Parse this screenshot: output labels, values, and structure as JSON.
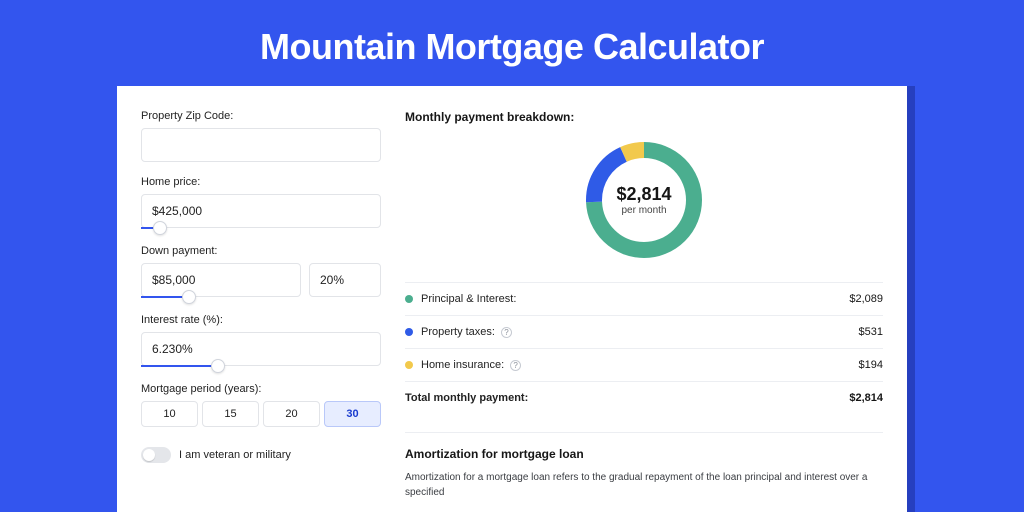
{
  "colors": {
    "page_bg": "#3355ee",
    "panel_bg": "#ffffff",
    "text_primary": "#161616",
    "input_border": "#e2e4e8",
    "slider_fill": "#3355ee",
    "period_active_bg": "#e7edff",
    "divider": "#eceef2"
  },
  "header": {
    "title": "Mountain Mortgage Calculator"
  },
  "form": {
    "zip": {
      "label": "Property Zip Code:",
      "value": ""
    },
    "home_price": {
      "label": "Home price:",
      "value": "$425,000",
      "slider_pct": 8
    },
    "down_payment": {
      "label": "Down payment:",
      "amount": "$85,000",
      "percent": "20%",
      "slider_pct": 20
    },
    "interest_rate": {
      "label": "Interest rate (%):",
      "value": "6.230%",
      "slider_pct": 32
    },
    "period": {
      "label": "Mortgage period (years):",
      "options": [
        "10",
        "15",
        "20",
        "30"
      ],
      "selected_index": 3
    },
    "veteran": {
      "label": "I am veteran or military",
      "on": false
    }
  },
  "breakdown": {
    "title": "Monthly payment breakdown:",
    "donut": {
      "center_value": "$2,814",
      "center_sub": "per month",
      "slices": [
        {
          "key": "principal_interest",
          "value": 2089,
          "color": "#4bae8f"
        },
        {
          "key": "property_taxes",
          "value": 531,
          "color": "#2f5be7"
        },
        {
          "key": "home_insurance",
          "value": 194,
          "color": "#f2c94c"
        }
      ],
      "stroke_width": 16,
      "radius": 50
    },
    "rows": [
      {
        "dot": "#4bae8f",
        "label": "Principal & Interest:",
        "info": false,
        "value": "$2,089"
      },
      {
        "dot": "#2f5be7",
        "label": "Property taxes:",
        "info": true,
        "value": "$531"
      },
      {
        "dot": "#f2c94c",
        "label": "Home insurance:",
        "info": true,
        "value": "$194"
      }
    ],
    "total": {
      "label": "Total monthly payment:",
      "value": "$2,814"
    }
  },
  "amortization": {
    "title": "Amortization for mortgage loan",
    "body": "Amortization for a mortgage loan refers to the gradual repayment of the loan principal and interest over a specified"
  }
}
